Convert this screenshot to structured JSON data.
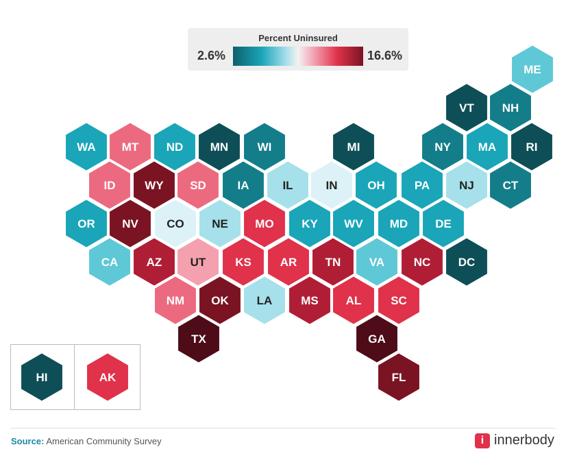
{
  "legend": {
    "title": "Percent Uninsured",
    "min_label": "2.6%",
    "max_label": "16.6%"
  },
  "colors": {
    "dark_teal": "#0e4f57",
    "mid_teal": "#147d8a",
    "teal": "#1aa5b8",
    "light_teal": "#5fc8d6",
    "pale_blue": "#a6e0ea",
    "very_pale": "#dcf2f7",
    "pink_light": "#f4a0ae",
    "pink": "#ec6a80",
    "red": "#e0324a",
    "dark_red": "#b01e35",
    "maroon": "#7a1422",
    "darkest": "#4d0c18"
  },
  "states": [
    {
      "code": "ME",
      "color": "light_teal"
    },
    {
      "code": "VT",
      "color": "dark_teal"
    },
    {
      "code": "NH",
      "color": "mid_teal"
    },
    {
      "code": "WA",
      "color": "teal"
    },
    {
      "code": "MT",
      "color": "pink"
    },
    {
      "code": "ND",
      "color": "teal"
    },
    {
      "code": "MN",
      "color": "dark_teal"
    },
    {
      "code": "WI",
      "color": "mid_teal"
    },
    {
      "code": "MI",
      "color": "dark_teal"
    },
    {
      "code": "NY",
      "color": "mid_teal"
    },
    {
      "code": "MA",
      "color": "teal"
    },
    {
      "code": "RI",
      "color": "dark_teal"
    },
    {
      "code": "ID",
      "color": "pink"
    },
    {
      "code": "WY",
      "color": "maroon"
    },
    {
      "code": "SD",
      "color": "pink"
    },
    {
      "code": "IA",
      "color": "mid_teal"
    },
    {
      "code": "IL",
      "color": "pale_blue"
    },
    {
      "code": "IN",
      "color": "very_pale"
    },
    {
      "code": "OH",
      "color": "teal"
    },
    {
      "code": "PA",
      "color": "teal"
    },
    {
      "code": "NJ",
      "color": "pale_blue"
    },
    {
      "code": "CT",
      "color": "mid_teal"
    },
    {
      "code": "OR",
      "color": "teal"
    },
    {
      "code": "NV",
      "color": "maroon"
    },
    {
      "code": "CO",
      "color": "very_pale"
    },
    {
      "code": "NE",
      "color": "pale_blue"
    },
    {
      "code": "MO",
      "color": "red"
    },
    {
      "code": "KY",
      "color": "teal"
    },
    {
      "code": "WV",
      "color": "teal"
    },
    {
      "code": "MD",
      "color": "teal"
    },
    {
      "code": "DE",
      "color": "teal"
    },
    {
      "code": "CA",
      "color": "light_teal"
    },
    {
      "code": "AZ",
      "color": "dark_red"
    },
    {
      "code": "UT",
      "color": "pink_light"
    },
    {
      "code": "KS",
      "color": "red"
    },
    {
      "code": "AR",
      "color": "red"
    },
    {
      "code": "TN",
      "color": "dark_red"
    },
    {
      "code": "VA",
      "color": "light_teal"
    },
    {
      "code": "NC",
      "color": "dark_red"
    },
    {
      "code": "DC",
      "color": "dark_teal"
    },
    {
      "code": "NM",
      "color": "pink"
    },
    {
      "code": "OK",
      "color": "maroon"
    },
    {
      "code": "LA",
      "color": "pale_blue"
    },
    {
      "code": "MS",
      "color": "dark_red"
    },
    {
      "code": "AL",
      "color": "red"
    },
    {
      "code": "SC",
      "color": "red"
    },
    {
      "code": "TX",
      "color": "darkest"
    },
    {
      "code": "GA",
      "color": "darkest"
    },
    {
      "code": "FL",
      "color": "maroon"
    },
    {
      "code": "HI",
      "color": "dark_teal"
    },
    {
      "code": "AK",
      "color": "red"
    }
  ],
  "footer": {
    "source_label": "Source:",
    "source_text": "American Community Survey",
    "brand_mark": "i",
    "brand_name": "innerbody"
  }
}
